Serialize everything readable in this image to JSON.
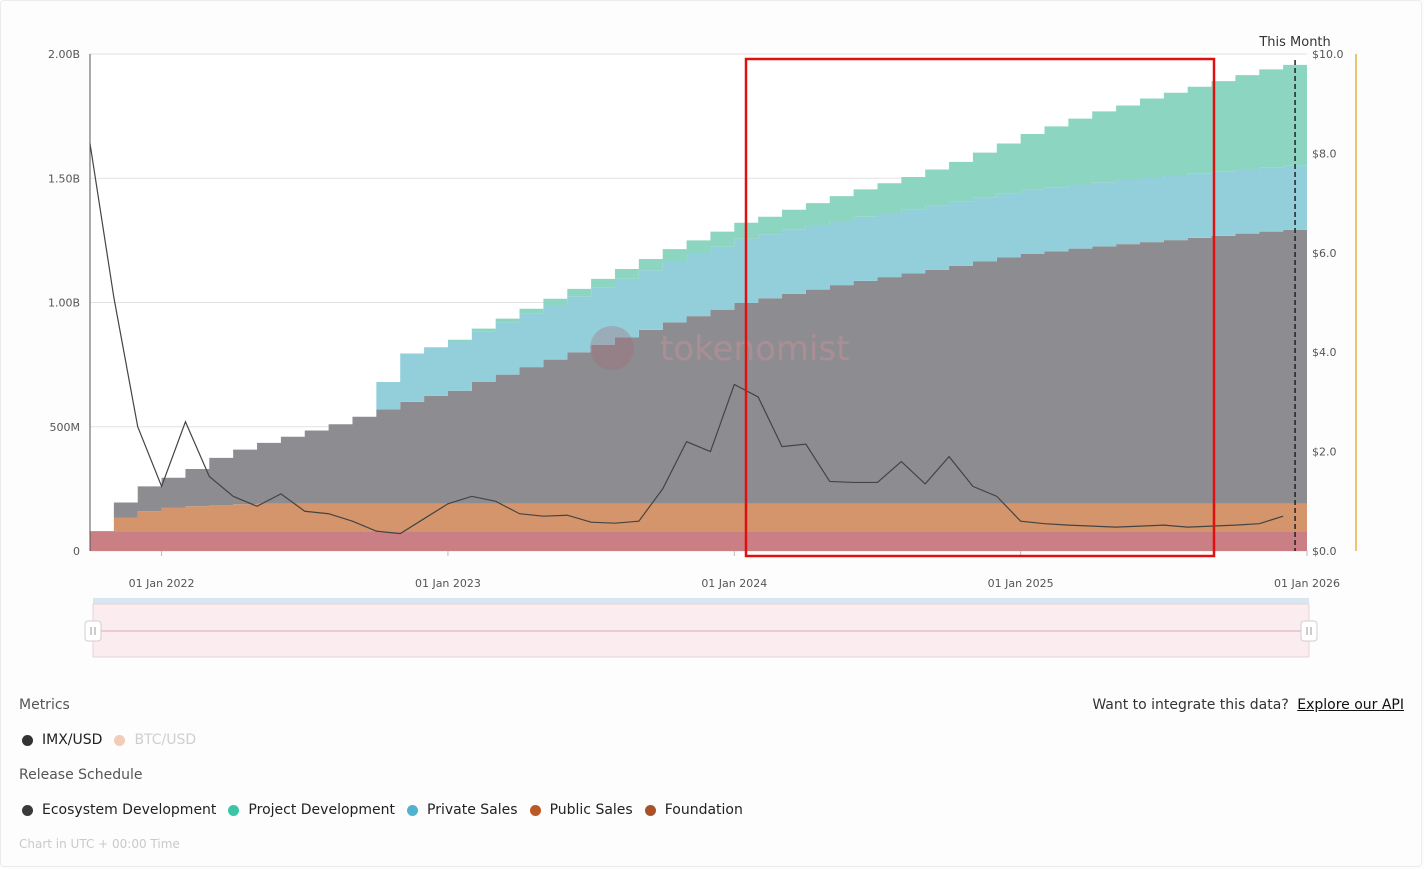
{
  "chart_data": {
    "type": "area",
    "title": "",
    "this_month_label": "This Month",
    "watermark": "tokenomist",
    "x_start": "2021-10",
    "x_ticks": [
      "01 Jan 2022",
      "01 Jan 2023",
      "01 Jan 2024",
      "01 Jan 2025",
      "01 Jan 2026"
    ],
    "y_left_ticks": [
      "0",
      "500M",
      "1.00B",
      "1.50B",
      "2.00B"
    ],
    "y_left_range": [
      0,
      2000000000
    ],
    "y_right_ticks": [
      "$0.0",
      "$2.0",
      "$4.0",
      "$6.0",
      "$8.0",
      "$10.0"
    ],
    "y_right_range": [
      0,
      10
    ],
    "months": [
      "2021-10",
      "2021-11",
      "2021-12",
      "2022-01",
      "2022-02",
      "2022-03",
      "2022-04",
      "2022-05",
      "2022-06",
      "2022-07",
      "2022-08",
      "2022-09",
      "2022-10",
      "2022-11",
      "2022-12",
      "2023-01",
      "2023-02",
      "2023-03",
      "2023-04",
      "2023-05",
      "2023-06",
      "2023-07",
      "2023-08",
      "2023-09",
      "2023-10",
      "2023-11",
      "2023-12",
      "2024-01",
      "2024-02",
      "2024-03",
      "2024-04",
      "2024-05",
      "2024-06",
      "2024-07",
      "2024-08",
      "2024-09",
      "2024-10",
      "2024-11",
      "2024-12",
      "2025-01",
      "2025-02",
      "2025-03",
      "2025-04",
      "2025-05",
      "2025-06",
      "2025-07",
      "2025-08",
      "2025-09",
      "2025-10",
      "2025-11",
      "2025-12"
    ],
    "series": [
      {
        "name": "Foundation",
        "color": "#c97f84",
        "values": [
          80,
          80,
          80,
          80,
          80,
          80,
          80,
          80,
          80,
          80,
          80,
          80,
          80,
          80,
          80,
          80,
          80,
          80,
          80,
          80,
          80,
          80,
          80,
          80,
          80,
          80,
          80,
          80,
          80,
          80,
          80,
          80,
          80,
          80,
          80,
          80,
          80,
          80,
          80,
          80,
          80,
          80,
          80,
          80,
          80,
          80,
          80,
          80,
          80,
          80,
          80
        ]
      },
      {
        "name": "Public Sales",
        "color": "#d4946c",
        "values": [
          0,
          55,
          80,
          95,
          100,
          105,
          108,
          110,
          110,
          110,
          110,
          110,
          110,
          110,
          110,
          110,
          110,
          110,
          110,
          110,
          110,
          110,
          110,
          110,
          110,
          110,
          110,
          110,
          110,
          110,
          110,
          110,
          110,
          110,
          110,
          110,
          110,
          110,
          110,
          110,
          110,
          110,
          110,
          110,
          110,
          110,
          110,
          110,
          110,
          110,
          110
        ]
      },
      {
        "name": "Ecosystem Development",
        "color": "#8d8d91",
        "values": [
          0,
          60,
          100,
          120,
          150,
          190,
          220,
          245,
          270,
          295,
          320,
          350,
          380,
          410,
          435,
          455,
          490,
          520,
          550,
          580,
          610,
          640,
          670,
          700,
          730,
          755,
          780,
          808,
          827,
          845,
          862,
          880,
          897,
          912,
          927,
          942,
          958,
          975,
          992,
          1005,
          1016,
          1027,
          1036,
          1045,
          1053,
          1061,
          1070,
          1078,
          1087,
          1095,
          1103
        ]
      },
      {
        "name": "Private Sales",
        "color": "#93cfdb",
        "values": [
          0,
          0,
          0,
          0,
          0,
          0,
          0,
          0,
          0,
          0,
          0,
          0,
          110,
          195,
          195,
          200,
          205,
          210,
          215,
          220,
          225,
          230,
          235,
          240,
          245,
          250,
          255,
          258,
          258,
          258,
          258,
          258,
          258,
          258,
          258,
          258,
          258,
          258,
          258,
          258,
          258,
          258,
          258,
          258,
          258,
          258,
          258,
          258,
          258,
          258,
          258
        ]
      },
      {
        "name": "Project Development",
        "color": "#8cd5c0",
        "values": [
          0,
          0,
          0,
          0,
          0,
          0,
          0,
          0,
          0,
          0,
          0,
          0,
          0,
          0,
          0,
          5,
          10,
          15,
          20,
          25,
          30,
          35,
          40,
          45,
          50,
          55,
          60,
          65,
          70,
          80,
          90,
          100,
          110,
          120,
          130,
          145,
          160,
          180,
          200,
          225,
          245,
          265,
          285,
          300,
          320,
          335,
          350,
          365,
          380,
          395,
          405
        ]
      }
    ],
    "price_series": {
      "name": "IMX/USD",
      "color": "#444444",
      "values": [
        8.2,
        5.1,
        2.5,
        1.3,
        2.6,
        1.5,
        1.1,
        0.9,
        1.15,
        0.8,
        0.75,
        0.6,
        0.4,
        0.35,
        0.65,
        0.95,
        1.1,
        1.0,
        0.75,
        0.7,
        0.72,
        0.58,
        0.56,
        0.6,
        1.25,
        2.2,
        2.0,
        3.35,
        3.1,
        2.1,
        2.15,
        1.4,
        1.38,
        1.38,
        1.8,
        1.35,
        1.9,
        1.3,
        1.1,
        0.6,
        0.55,
        0.52,
        0.5,
        0.48,
        0.5,
        0.52,
        0.48,
        0.5,
        0.52,
        0.55,
        0.7
      ]
    }
  },
  "metrics_label": "Metrics",
  "metrics": [
    {
      "label": "IMX/USD",
      "color": "#333333",
      "disabled": false
    },
    {
      "label": "BTC/USD",
      "color": "#f1ccb6",
      "disabled": true
    }
  ],
  "release_label": "Release Schedule",
  "release_items": [
    {
      "label": "Ecosystem Development",
      "color": "#3a3a3a"
    },
    {
      "label": "Project Development",
      "color": "#3cc4a4"
    },
    {
      "label": "Private Sales",
      "color": "#4fb3cf"
    },
    {
      "label": "Public Sales",
      "color": "#b95a26"
    },
    {
      "label": "Foundation",
      "color": "#a8522a"
    }
  ],
  "api_text": "Want to integrate this data?",
  "api_link": "Explore our API",
  "footnote": "Chart in UTC + 00:00 Time",
  "colors": {
    "highlight": "#e01010",
    "right_axis": "#e8b04a"
  }
}
